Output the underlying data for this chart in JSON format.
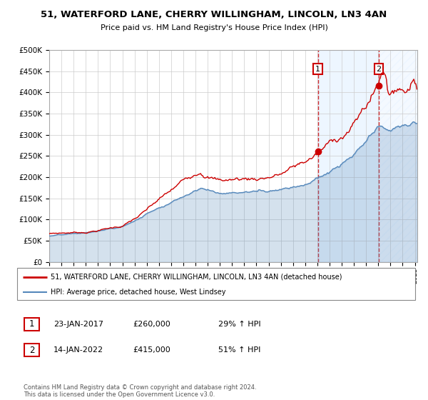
{
  "title": "51, WATERFORD LANE, CHERRY WILLINGHAM, LINCOLN, LN3 4AN",
  "subtitle": "Price paid vs. HM Land Registry's House Price Index (HPI)",
  "legend_line1": "51, WATERFORD LANE, CHERRY WILLINGHAM, LINCOLN, LN3 4AN (detached house)",
  "legend_line2": "HPI: Average price, detached house, West Lindsey",
  "annotation1_label": "1",
  "annotation1_date": "23-JAN-2017",
  "annotation1_price": "£260,000",
  "annotation1_pct": "29% ↑ HPI",
  "annotation2_label": "2",
  "annotation2_date": "14-JAN-2022",
  "annotation2_price": "£415,000",
  "annotation2_pct": "51% ↑ HPI",
  "footer": "Contains HM Land Registry data © Crown copyright and database right 2024.\nThis data is licensed under the Open Government Licence v3.0.",
  "red_color": "#cc0000",
  "blue_color": "#5588bb",
  "blue_fill": "#ddeeff",
  "sale1_year": 2017.05,
  "sale1_price": 260000,
  "sale2_year": 2022.04,
  "sale2_price": 415000,
  "ylim_min": 0,
  "ylim_max": 500000,
  "xlim_start": 1995.0,
  "xlim_end": 2025.2
}
